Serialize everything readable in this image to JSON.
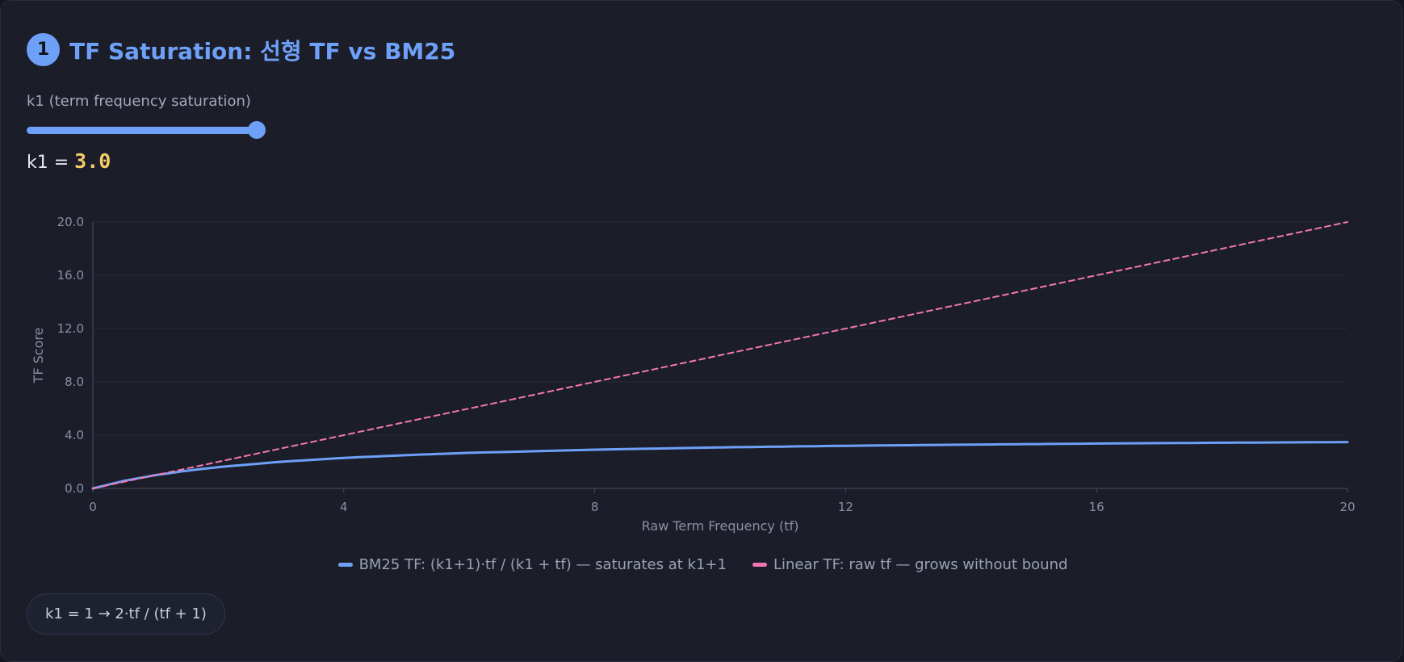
{
  "header": {
    "step_number": "1",
    "title": "TF Saturation: 선형 TF vs BM25"
  },
  "control": {
    "label": "k1 (term frequency saturation)",
    "value_prefix": "k1 = ",
    "value_text": "3.0",
    "value": 3.0,
    "slider_fraction": 1.0
  },
  "colors": {
    "accent": "#6ea0f7",
    "value_highlight": "#f5cc67",
    "linear": "#f277b0",
    "background": "#1b1d29"
  },
  "chart_data": {
    "type": "line",
    "xlabel": "Raw Term Frequency (tf)",
    "ylabel": "TF Score",
    "xlim": [
      0,
      20
    ],
    "ylim": [
      0,
      20
    ],
    "x_ticks": [
      "0",
      "4",
      "8",
      "12",
      "16",
      "20"
    ],
    "y_ticks": [
      "0.0",
      "4.0",
      "8.0",
      "12.0",
      "16.0",
      "20.0"
    ],
    "grid": "horizontal",
    "legend_position": "bottom-center",
    "x": [
      0,
      0.5,
      1,
      1.5,
      2,
      3,
      4,
      5,
      6,
      8,
      10,
      12,
      14,
      16,
      18,
      20
    ],
    "series": [
      {
        "name": "BM25 TF: (k1+1)·tf / (k1 + tf) — saturates at k1+1",
        "style": "solid",
        "color": "#6ea0f7",
        "values": [
          0,
          0.57,
          1.0,
          1.33,
          1.6,
          2.0,
          2.29,
          2.5,
          2.67,
          2.91,
          3.08,
          3.2,
          3.29,
          3.37,
          3.43,
          3.48
        ]
      },
      {
        "name": "Linear TF: raw tf — grows without bound",
        "style": "dashed",
        "color": "#f277b0",
        "values": [
          0,
          0.5,
          1,
          1.5,
          2,
          3,
          4,
          5,
          6,
          8,
          10,
          12,
          14,
          16,
          18,
          20
        ]
      }
    ]
  },
  "footer": {
    "pill_text": "k1 = 1 → 2·tf / (tf + 1)"
  }
}
